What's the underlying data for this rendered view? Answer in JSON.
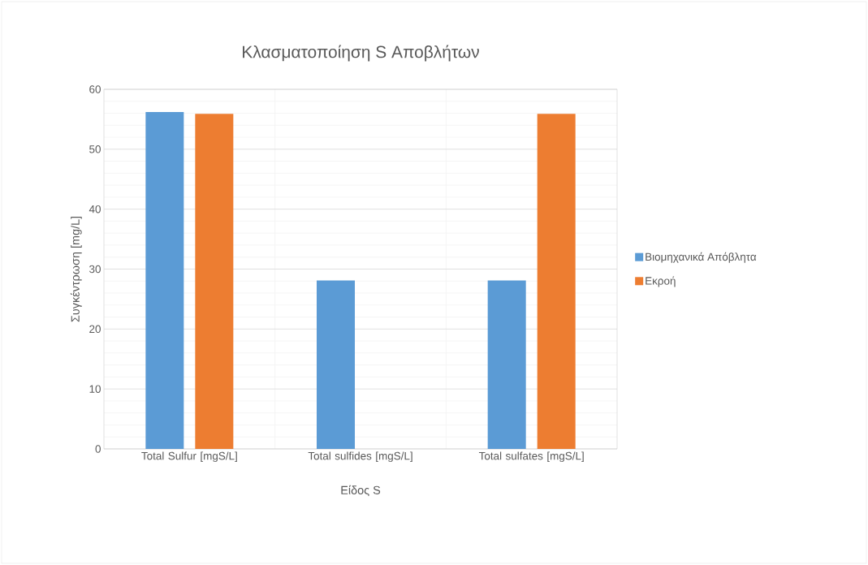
{
  "chart_data": {
    "type": "bar",
    "title": "Κλασματοποίηση S Αποβλήτων",
    "xlabel": "Είδος S",
    "ylabel": "Συγκέντρωση [mg/L]",
    "categories": [
      "Total Sulfur [mgS/L]",
      "Total sulfides [mgS/L]",
      "Total sulfates [mgS/L]"
    ],
    "series": [
      {
        "name": "Βιομηχανικά Απόβλητα",
        "color": "#5b9bd5",
        "values": [
          56.2,
          28.1,
          28.1
        ]
      },
      {
        "name": "Εκροή",
        "color": "#ed7d31",
        "values": [
          55.9,
          null,
          55.9
        ]
      }
    ],
    "ylim": [
      0,
      60
    ],
    "yticks": [
      0,
      10,
      20,
      30,
      40,
      50,
      60
    ],
    "grid": true,
    "legend": "right"
  }
}
